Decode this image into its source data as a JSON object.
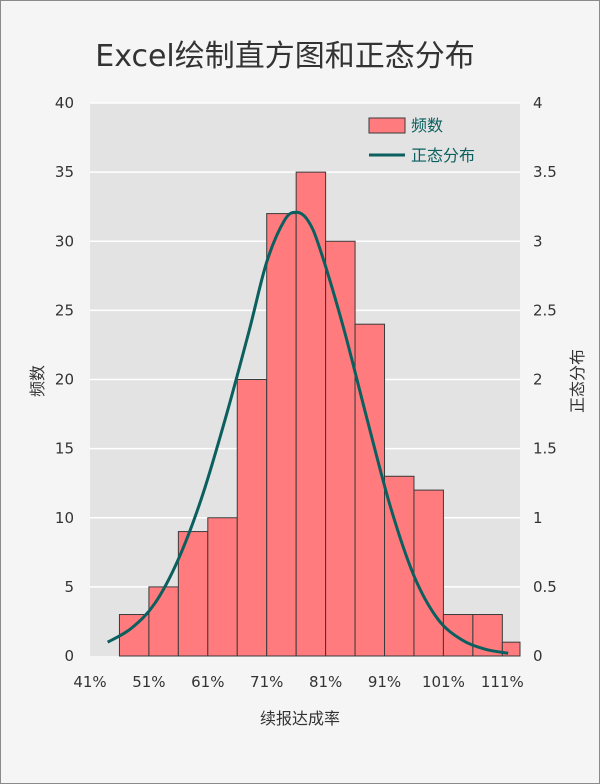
{
  "chart_data": {
    "type": "bar",
    "title": "Excel绘制直方图和正态分布",
    "xlabel": "续报达成率",
    "ylabel": "频数",
    "y2label": "正态分布",
    "x_tick_labels": [
      "41%",
      "51%",
      "61%",
      "71%",
      "81%",
      "91%",
      "101%",
      "111%"
    ],
    "x_range": [
      41,
      114
    ],
    "bin_width": 5,
    "bins": [
      {
        "x0": 46,
        "x1": 51,
        "value": 3
      },
      {
        "x0": 51,
        "x1": 56,
        "value": 5
      },
      {
        "x0": 56,
        "x1": 61,
        "value": 9
      },
      {
        "x0": 61,
        "x1": 66,
        "value": 10
      },
      {
        "x0": 66,
        "x1": 71,
        "value": 20
      },
      {
        "x0": 71,
        "x1": 76,
        "value": 32
      },
      {
        "x0": 76,
        "x1": 81,
        "value": 35
      },
      {
        "x0": 81,
        "x1": 86,
        "value": 30
      },
      {
        "x0": 86,
        "x1": 91,
        "value": 24
      },
      {
        "x0": 91,
        "x1": 96,
        "value": 13
      },
      {
        "x0": 96,
        "x1": 101,
        "value": 12
      },
      {
        "x0": 101,
        "x1": 106,
        "value": 3
      },
      {
        "x0": 106,
        "x1": 111,
        "value": 3
      },
      {
        "x0": 111,
        "x1": 114,
        "value": 1
      }
    ],
    "series": [
      {
        "name": "频数",
        "type": "bar",
        "axis": "left",
        "color": "#ff7b7e",
        "edge_color": "#3a3a3a"
      },
      {
        "name": "正态分布",
        "type": "line",
        "axis": "right",
        "color": "#0b5f5f",
        "points": [
          [
            44,
            0.1
          ],
          [
            48,
            0.2
          ],
          [
            52,
            0.38
          ],
          [
            56,
            0.7
          ],
          [
            60,
            1.15
          ],
          [
            64,
            1.72
          ],
          [
            68,
            2.35
          ],
          [
            71,
            2.85
          ],
          [
            74,
            3.15
          ],
          [
            76,
            3.21
          ],
          [
            78,
            3.15
          ],
          [
            80,
            2.95
          ],
          [
            84,
            2.38
          ],
          [
            88,
            1.72
          ],
          [
            92,
            1.08
          ],
          [
            96,
            0.58
          ],
          [
            100,
            0.27
          ],
          [
            104,
            0.12
          ],
          [
            108,
            0.05
          ],
          [
            112,
            0.02
          ]
        ]
      }
    ],
    "ylim": [
      0,
      40
    ],
    "y_ticks": [
      0,
      5,
      10,
      15,
      20,
      25,
      30,
      35,
      40
    ],
    "y2lim": [
      0,
      4
    ],
    "y2_tick_labels": [
      "0",
      "0.5",
      "1",
      "1.5",
      "2",
      "2.5",
      "3",
      "3.5",
      "4"
    ],
    "grid": true,
    "legend_position": "top-right",
    "colors": {
      "plot_background": "#e3e3e3",
      "grid": "#ffffff",
      "bar": "#ff7b7e",
      "line": "#0b5f5f"
    }
  }
}
